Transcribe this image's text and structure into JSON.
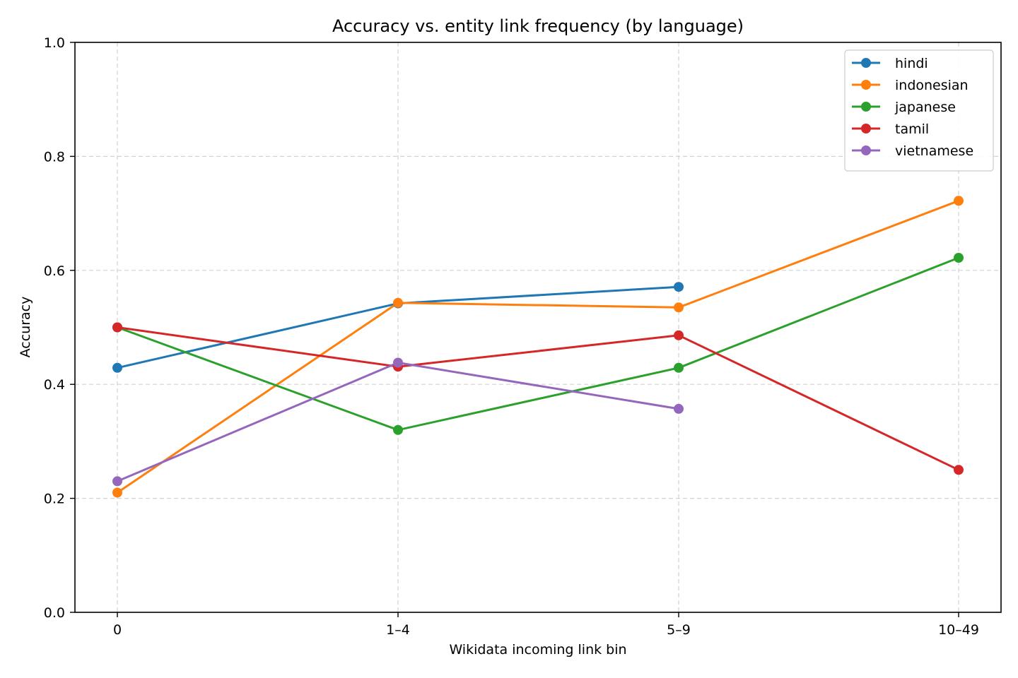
{
  "chart_data": {
    "type": "line",
    "title": "Accuracy vs. entity link frequency (by language)",
    "xlabel": "Wikidata incoming link bin",
    "ylabel": "Accuracy",
    "categories": [
      "0",
      "1–4",
      "5–9",
      "10–49"
    ],
    "ylim": [
      0,
      1
    ],
    "yticks": [
      "0.0",
      "0.2",
      "0.4",
      "0.6",
      "0.8",
      "1.0"
    ],
    "grid": true,
    "legend_position": "top-right",
    "series": [
      {
        "name": "hindi",
        "color": "#1f77b4",
        "values": [
          0.429,
          0.542,
          0.571,
          null
        ]
      },
      {
        "name": "indonesian",
        "color": "#ff7f0e",
        "values": [
          0.21,
          0.543,
          0.535,
          0.722
        ]
      },
      {
        "name": "japanese",
        "color": "#2ca02c",
        "values": [
          0.5,
          0.32,
          0.429,
          0.622
        ]
      },
      {
        "name": "tamil",
        "color": "#d62728",
        "values": [
          0.5,
          0.431,
          0.486,
          0.25
        ]
      },
      {
        "name": "vietnamese",
        "color": "#9467bd",
        "values": [
          0.23,
          0.438,
          0.357,
          null
        ]
      }
    ]
  }
}
